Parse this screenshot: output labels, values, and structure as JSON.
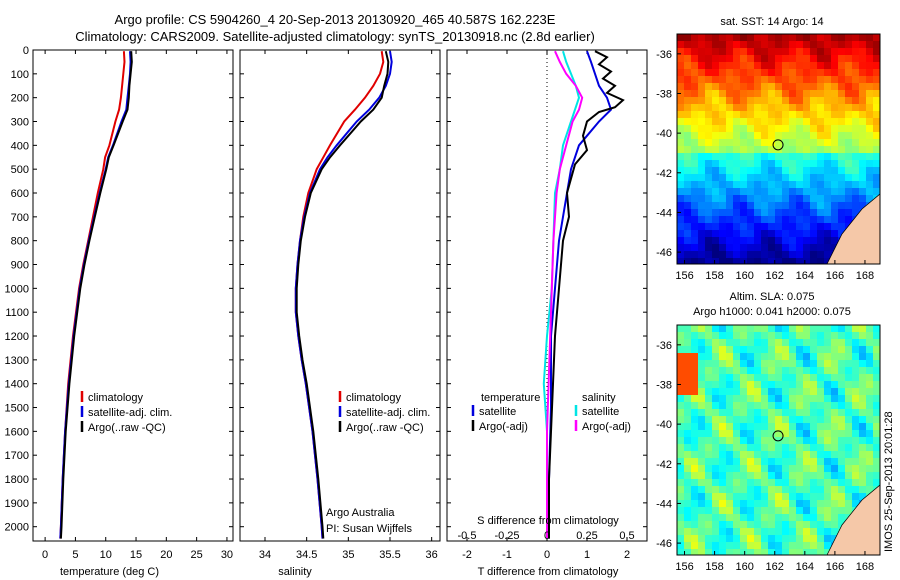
{
  "header": {
    "line1": "Argo profile: CS 5904260_4 20-Sep-2013 20130920_465 40.587S 162.223E",
    "line2": "Climatology: CARS2009. Satellite-adjusted climatology: synTS_20130918.nc (2.8d earlier)"
  },
  "side_label": "IMOS 25-Sep-2013 20:01:28",
  "credits": {
    "line1": "Argo Australia",
    "line2": "PI: Susan Wijffels"
  },
  "colors": {
    "climatology": "#e00000",
    "satellite": "#0000dd",
    "argo": "#000000",
    "magenta": "#ff00ff",
    "cyan": "#00e5e5",
    "land": "#f5c8a8"
  },
  "chart_data": [
    {
      "type": "line",
      "name": "temperature",
      "xlabel": "temperature (deg C)",
      "ylabel": "",
      "xlim": [
        -2,
        31
      ],
      "ylim": [
        2060,
        0
      ],
      "xticks": [
        0,
        5,
        10,
        15,
        20,
        25,
        30
      ],
      "xticklabels": [
        "0",
        "5",
        "10",
        "15",
        "20",
        "25",
        "30"
      ],
      "yticks": [
        0,
        100,
        200,
        300,
        400,
        500,
        600,
        700,
        800,
        900,
        1000,
        1100,
        1200,
        1300,
        1400,
        1500,
        1600,
        1700,
        1800,
        1900,
        2000
      ],
      "yticklabels": [
        "0",
        "100",
        "200",
        "300",
        "400",
        "500",
        "600",
        "700",
        "800",
        "900",
        "1000",
        "1100",
        "1200",
        "1300",
        "1400",
        "1500",
        "1600",
        "1700",
        "1800",
        "1900",
        "2000"
      ],
      "legend": [
        "climatology",
        "satellite-adj. clim.",
        "Argo(..raw -QC)"
      ],
      "series": [
        {
          "name": "climatology",
          "depth": [
            5,
            50,
            100,
            150,
            200,
            250,
            300,
            400,
            450,
            500,
            600,
            700,
            800,
            900,
            1000,
            1200,
            1400,
            1600,
            1800,
            2000,
            2050
          ],
          "values": [
            13.0,
            13.1,
            12.9,
            12.7,
            12.5,
            12.2,
            11.6,
            10.6,
            9.9,
            9.6,
            8.7,
            7.9,
            7.1,
            6.3,
            5.6,
            4.6,
            3.8,
            3.3,
            2.9,
            2.6,
            2.5
          ]
        },
        {
          "name": "satellite-adj. clim.",
          "depth": [
            5,
            50,
            100,
            150,
            200,
            250,
            300,
            400,
            450,
            500,
            600,
            700,
            800,
            900,
            1000,
            1200,
            1400,
            1600,
            1800,
            2000,
            2050
          ],
          "values": [
            14.0,
            14.1,
            14.0,
            13.8,
            13.6,
            13.4,
            12.6,
            11.2,
            10.4,
            10.0,
            9.0,
            8.1,
            7.2,
            6.4,
            5.7,
            4.7,
            3.9,
            3.3,
            2.9,
            2.6,
            2.5
          ]
        },
        {
          "name": "Argo(..raw -QC)",
          "depth": [
            5,
            50,
            100,
            150,
            200,
            250,
            300,
            400,
            450,
            500,
            600,
            700,
            800,
            900,
            1000,
            1200,
            1400,
            1600,
            1800,
            2000,
            2050
          ],
          "values": [
            14.2,
            14.3,
            14.1,
            13.9,
            13.8,
            13.6,
            12.8,
            11.3,
            10.5,
            10.1,
            9.1,
            8.2,
            7.3,
            6.5,
            5.8,
            4.8,
            4.0,
            3.4,
            3.0,
            2.7,
            2.6
          ]
        }
      ]
    },
    {
      "type": "line",
      "name": "salinity",
      "xlabel": "salinity",
      "xlim": [
        33.7,
        36.1
      ],
      "ylim": [
        2060,
        0
      ],
      "xticks": [
        34,
        34.5,
        35,
        35.5,
        36
      ],
      "xticklabels": [
        "34",
        "34.5",
        "35",
        "35.5",
        "36"
      ],
      "legend": [
        "climatology",
        "satellite-adj. clim.",
        "Argo(..raw -QC)"
      ],
      "series": [
        {
          "name": "climatology",
          "depth": [
            5,
            50,
            100,
            150,
            200,
            250,
            300,
            400,
            450,
            500,
            600,
            700,
            800,
            900,
            1000,
            1100,
            1200,
            1300,
            1400,
            1600,
            1800,
            2000,
            2050
          ],
          "values": [
            35.4,
            35.42,
            35.38,
            35.3,
            35.2,
            35.08,
            34.95,
            34.78,
            34.7,
            34.62,
            34.52,
            34.46,
            34.42,
            34.39,
            34.37,
            34.37,
            34.4,
            34.44,
            34.49,
            34.57,
            34.63,
            34.68,
            34.69
          ]
        },
        {
          "name": "satellite-adj. clim.",
          "depth": [
            5,
            50,
            100,
            150,
            200,
            250,
            300,
            400,
            450,
            500,
            600,
            700,
            800,
            900,
            1000,
            1100,
            1200,
            1300,
            1400,
            1600,
            1800,
            2000,
            2050
          ],
          "values": [
            35.5,
            35.52,
            35.5,
            35.45,
            35.37,
            35.25,
            35.1,
            34.86,
            34.75,
            34.66,
            34.54,
            34.47,
            34.42,
            34.39,
            34.37,
            34.37,
            34.4,
            34.44,
            34.49,
            34.57,
            34.63,
            34.68,
            34.69
          ]
        },
        {
          "name": "Argo(..raw -QC)",
          "depth": [
            5,
            50,
            100,
            150,
            200,
            250,
            300,
            400,
            450,
            500,
            600,
            700,
            800,
            900,
            1000,
            1100,
            1200,
            1300,
            1400,
            1600,
            1800,
            2000,
            2050
          ],
          "values": [
            35.45,
            35.48,
            35.47,
            35.43,
            35.4,
            35.3,
            35.15,
            34.9,
            34.78,
            34.68,
            34.55,
            34.48,
            34.43,
            34.4,
            34.38,
            34.38,
            34.41,
            34.45,
            34.5,
            34.58,
            34.64,
            34.69,
            34.7
          ]
        }
      ]
    },
    {
      "type": "line",
      "name": "difference",
      "xlabel_top": "S difference from climatology",
      "xlabel": "T difference from climatology",
      "xlim": [
        -2.5,
        2.5
      ],
      "ylim": [
        2060,
        0
      ],
      "xticks": [
        -2,
        -1,
        0,
        1,
        2
      ],
      "xticklabels": [
        "-2",
        "-1",
        "0",
        "1",
        "2"
      ],
      "s_ticks": [
        -0.5,
        -0.25,
        0,
        0.25,
        0.5
      ],
      "s_ticklabels": [
        "-0.5",
        "-0.25",
        "0",
        "0.25",
        "0.5"
      ],
      "legend_groups": {
        "left_title": "temperature",
        "right_title": "salinity"
      },
      "legend": [
        "satellite",
        "Argo(-adj)",
        "satellite",
        "Argo(-adj)"
      ],
      "series": [
        {
          "name": "temperature satellite",
          "depth": [
            5,
            50,
            100,
            150,
            200,
            250,
            300,
            400,
            500,
            600,
            800,
            1000,
            1200,
            1500,
            1800,
            2050
          ],
          "values": [
            1.0,
            1.1,
            1.2,
            1.3,
            1.5,
            1.6,
            1.3,
            0.8,
            0.6,
            0.5,
            0.3,
            0.2,
            0.1,
            0.1,
            0.05,
            0.05
          ]
        },
        {
          "name": "temperature Argo(-adj)",
          "depth": [
            5,
            30,
            60,
            90,
            120,
            150,
            180,
            210,
            240,
            260,
            300,
            360,
            420,
            480,
            600,
            700,
            800,
            900,
            1000,
            1100,
            1200,
            1400,
            1600,
            1800,
            2050
          ],
          "values": [
            1.2,
            1.5,
            1.3,
            1.6,
            1.4,
            1.7,
            1.5,
            1.9,
            1.7,
            1.3,
            1.0,
            0.9,
            1.0,
            0.7,
            0.5,
            0.55,
            0.4,
            0.35,
            0.3,
            0.25,
            0.2,
            0.15,
            0.1,
            0.05,
            0.05
          ]
        },
        {
          "name": "salinity satellite",
          "depth": [
            5,
            50,
            100,
            150,
            200,
            300,
            400,
            500,
            600,
            800,
            1000,
            1200,
            1400,
            1600,
            2050
          ],
          "values": [
            0.1,
            0.12,
            0.15,
            0.18,
            0.2,
            0.15,
            0.1,
            0.08,
            0.05,
            0.04,
            0.03,
            0.0,
            -0.02,
            0.0,
            0.0
          ]
        },
        {
          "name": "salinity Argo(-adj)",
          "depth": [
            5,
            50,
            100,
            150,
            200,
            250,
            300,
            400,
            500,
            600,
            800,
            1000,
            1200,
            1400,
            1600,
            2050
          ],
          "values": [
            0.05,
            0.08,
            0.12,
            0.18,
            0.22,
            0.2,
            0.16,
            0.12,
            0.08,
            0.06,
            0.04,
            0.03,
            0.02,
            0.01,
            0.0,
            0.0
          ]
        }
      ]
    },
    {
      "type": "heatmap",
      "name": "sst_map",
      "title": "sat. SST: 14 Argo: 14",
      "xlim": [
        155.5,
        169
      ],
      "ylim": [
        -46.6,
        -35
      ],
      "xticks": [
        156,
        158,
        160,
        162,
        164,
        166,
        168
      ],
      "xticklabels": [
        "156",
        "158",
        "160",
        "162",
        "164",
        "166",
        "168"
      ],
      "yticks": [
        -36,
        -38,
        -40,
        -42,
        -44,
        -46
      ],
      "yticklabels": [
        "-36",
        "-38",
        "-40",
        "-42",
        "-44",
        "-46"
      ],
      "marker": {
        "lon": 162.22,
        "lat": -40.59
      }
    },
    {
      "type": "heatmap",
      "name": "sla_map",
      "title": "Altim. SLA: 0.075",
      "subtitle": "Argo h1000: 0.041 h2000: 0.075",
      "xlim": [
        155.5,
        169
      ],
      "ylim": [
        -46.6,
        -35
      ],
      "xticks": [
        156,
        158,
        160,
        162,
        164,
        166,
        168
      ],
      "xticklabels": [
        "156",
        "158",
        "160",
        "162",
        "164",
        "166",
        "168"
      ],
      "yticks": [
        -36,
        -38,
        -40,
        -42,
        -44,
        -46
      ],
      "yticklabels": [
        "-36",
        "-38",
        "-40",
        "-42",
        "-44",
        "-46"
      ],
      "marker": {
        "lon": 162.22,
        "lat": -40.59
      }
    }
  ]
}
